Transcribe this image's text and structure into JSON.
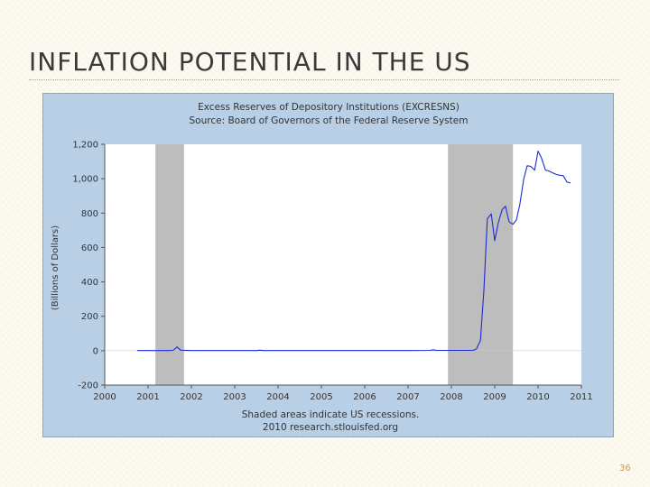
{
  "slide": {
    "title": "INFLATION POTENTIAL IN THE US",
    "page_number": "36"
  },
  "colors": {
    "frame": "#b8cfe6",
    "plot": "#ffffff",
    "recession": "#bdbdbd",
    "line": "#1a2bd6",
    "text": "#333333"
  },
  "chart_data": {
    "type": "line",
    "title": "Excess Reserves of Depository Institutions (EXCRESNS)",
    "subtitle": "Source: Board of Governors of the Federal Reserve System",
    "ylabel": "(Billions of Dollars)",
    "xlabel": "",
    "xlim": [
      2000,
      2011
    ],
    "ylim": [
      -200,
      1200
    ],
    "x_ticks": [
      2000,
      2001,
      2002,
      2003,
      2004,
      2005,
      2006,
      2007,
      2008,
      2009,
      2010,
      2011
    ],
    "y_ticks": [
      -200,
      0,
      200,
      400,
      600,
      800,
      1000,
      1200
    ],
    "x_tick_labels": [
      "2000",
      "2001",
      "2002",
      "2003",
      "2004",
      "2005",
      "2006",
      "2007",
      "2008",
      "2009",
      "2010",
      "2011"
    ],
    "y_tick_labels": [
      "-200",
      "0",
      "200",
      "400",
      "600",
      "800",
      "1,000",
      "1,200"
    ],
    "grid": false,
    "recessions": [
      {
        "start": 2001.17,
        "end": 2001.83
      },
      {
        "start": 2007.92,
        "end": 2009.42
      }
    ],
    "footnotes": [
      "Shaded areas indicate US recessions.",
      "2010 research.stlouisfed.org"
    ],
    "series": [
      {
        "x": [
          2000.75,
          2001.0,
          2001.25,
          2001.5,
          2001.58,
          2001.67,
          2001.75,
          2002.0,
          2002.5,
          2003.0,
          2003.5,
          2003.58,
          2003.67,
          2004.0,
          2004.5,
          2005.0,
          2005.5,
          2006.0,
          2006.5,
          2007.0,
          2007.5,
          2007.58,
          2007.67,
          2008.0,
          2008.25,
          2008.5,
          2008.58,
          2008.67,
          2008.75,
          2008.83,
          2008.92,
          2009.0,
          2009.08,
          2009.17,
          2009.25,
          2009.33,
          2009.42,
          2009.5,
          2009.58,
          2009.67,
          2009.75,
          2009.83,
          2009.92,
          2010.0,
          2010.08,
          2010.17,
          2010.25,
          2010.33,
          2010.42,
          2010.5,
          2010.58,
          2010.67,
          2010.75
        ],
        "y": [
          1,
          1,
          1,
          1,
          2,
          22,
          3,
          1,
          1,
          1,
          1,
          3,
          1,
          1,
          1,
          1,
          1,
          1,
          1,
          1,
          2,
          5,
          2,
          2,
          2,
          2,
          10,
          60,
          350,
          767,
          795,
          640,
          740,
          820,
          840,
          750,
          735,
          760,
          850,
          1000,
          1075,
          1072,
          1050,
          1160,
          1120,
          1050,
          1045,
          1035,
          1025,
          1020,
          1018,
          980,
          975
        ]
      }
    ]
  }
}
